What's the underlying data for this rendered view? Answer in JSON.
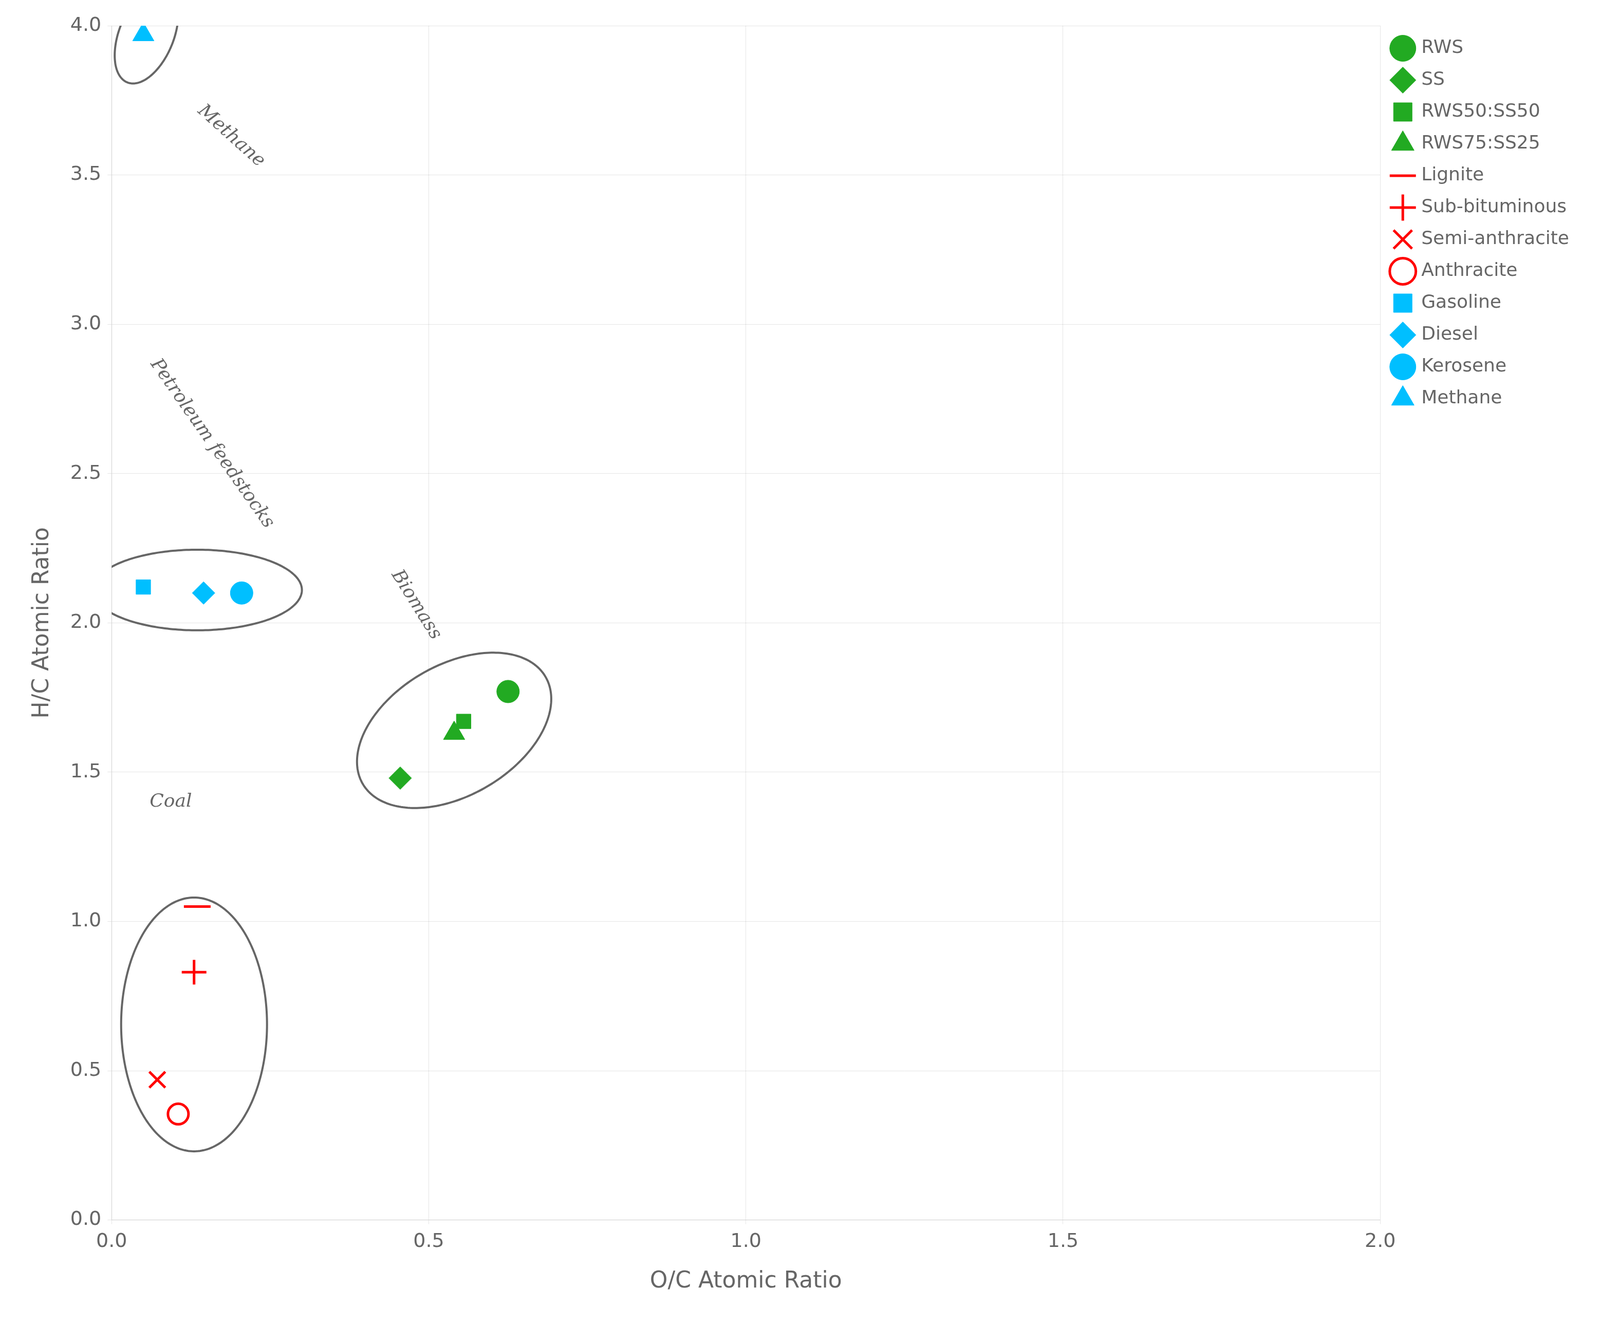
{
  "chart_data": {
    "type": "scatter",
    "xlabel": "O/C Atomic Ratio",
    "ylabel": "H/C Atomic Ratio",
    "xlim": [
      0,
      2.0
    ],
    "ylim": [
      0,
      4.0
    ],
    "xticks": [
      {
        "value": 0.0,
        "label": "0.0"
      },
      0.5,
      {
        "value": 1.0,
        "label": "1.0"
      },
      1.5,
      {
        "value": 2.0,
        "label": "2.0"
      }
    ],
    "yticks": [
      {
        "value": 0.0,
        "label": "0.0"
      },
      0.5,
      {
        "value": 1.0,
        "label": "1.0"
      },
      1.5,
      {
        "value": 2.0,
        "label": "2.0"
      },
      2.5,
      {
        "value": 3.0,
        "label": "3.0"
      },
      3.5,
      {
        "value": 4.0,
        "label": "4.0"
      }
    ],
    "grid": true,
    "legend": "upper right",
    "series": [
      {
        "name": "RWS",
        "color": "#22aa22",
        "marker": "circle",
        "x": [
          0.625
        ],
        "values": [
          1.77
        ]
      },
      {
        "name": "SS",
        "color": "#22aa22",
        "marker": "diamond",
        "x": [
          0.455
        ],
        "values": [
          1.48
        ]
      },
      {
        "name": "RWS50:SS50",
        "color": "#22aa22",
        "marker": "square",
        "x": [
          0.555
        ],
        "values": [
          1.67
        ]
      },
      {
        "name": "RWS75:SS25",
        "color": "#22aa22",
        "marker": "triangle",
        "x": [
          0.54
        ],
        "values": [
          1.63
        ]
      },
      {
        "name": "Lignite",
        "color": "#ff0000",
        "marker": "dash",
        "x": [
          0.135
        ],
        "values": [
          1.05
        ]
      },
      {
        "name": "Sub-bituminous",
        "color": "#ff0000",
        "marker": "plus",
        "x": [
          0.13
        ],
        "values": [
          0.83
        ]
      },
      {
        "name": "Semi-anthracite",
        "color": "#ff0000",
        "marker": "x",
        "x": [
          0.072
        ],
        "values": [
          0.47
        ]
      },
      {
        "name": "Anthracite",
        "color": "#ff0000",
        "marker": "open_circle",
        "x": [
          0.105
        ],
        "values": [
          0.355
        ]
      },
      {
        "name": "Gasoline",
        "color": "#00bfff",
        "marker": "square",
        "x": [
          0.05
        ],
        "values": [
          2.12
        ]
      },
      {
        "name": "Diesel",
        "color": "#00bfff",
        "marker": "diamond",
        "x": [
          0.145
        ],
        "values": [
          2.1
        ]
      },
      {
        "name": "Kerosene",
        "color": "#00bfff",
        "marker": "circle",
        "x": [
          0.205
        ],
        "values": [
          2.1
        ]
      },
      {
        "name": "Methane",
        "color": "#00bfff",
        "marker": "triangle",
        "x": [
          0.05
        ],
        "values": [
          3.97
        ]
      }
    ],
    "ellipses": [
      {
        "cx": 0.055,
        "cy": 3.97,
        "width": 0.09,
        "height": 0.33,
        "angle": -8
      },
      {
        "cx": 0.135,
        "cy": 2.11,
        "width": 0.33,
        "height": 0.27,
        "angle": 0
      },
      {
        "cx": 0.13,
        "cy": 0.655,
        "width": 0.23,
        "height": 0.85,
        "angle": 0
      },
      {
        "cx": 0.54,
        "cy": 1.64,
        "width": 0.27,
        "height": 0.54,
        "angle": -18
      }
    ],
    "annotations": [
      {
        "text": "Methane",
        "x": 0.13,
        "y": 3.63
      },
      {
        "text": "Petroleum feedstocks",
        "x": 0.055,
        "y": 2.6
      },
      {
        "text": "Coal",
        "x": 0.06,
        "y": 1.4
      },
      {
        "text": "Biomass",
        "x": 0.435,
        "y": 2.06
      }
    ]
  }
}
